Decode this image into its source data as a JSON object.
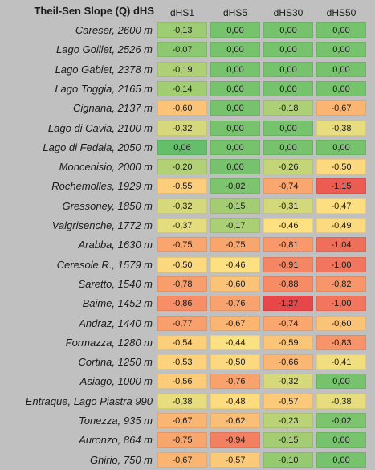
{
  "chart_data": {
    "type": "heatmap",
    "title": "Theil-Sen Slope (Q) dHS",
    "columns": [
      "dHS1",
      "dHS5",
      "dHS30",
      "dHS50"
    ],
    "rows": [
      {
        "site": "Careser, 2600 m",
        "values": [
          "-0,13",
          "0,00",
          "0,00",
          "0,00"
        ]
      },
      {
        "site": "Lago Goillet, 2526 m",
        "values": [
          "-0,07",
          "0,00",
          "0,00",
          "0,00"
        ]
      },
      {
        "site": "Lago Gabiet, 2378 m",
        "values": [
          "-0,19",
          "0,00",
          "0,00",
          "0,00"
        ]
      },
      {
        "site": "Lago Toggia, 2165 m",
        "values": [
          "-0,14",
          "0,00",
          "0,00",
          "0,00"
        ]
      },
      {
        "site": "Cignana, 2137 m",
        "values": [
          "-0,60",
          "0,00",
          "-0,18",
          "-0,67"
        ]
      },
      {
        "site": "Lago di Cavia, 2100 m",
        "values": [
          "-0,32",
          "0,00",
          "0,00",
          "-0,38"
        ]
      },
      {
        "site": "Lago di Fedaia, 2050 m",
        "values": [
          "0,06",
          "0,00",
          "0,00",
          "0,00"
        ]
      },
      {
        "site": "Moncenisio, 2000 m",
        "values": [
          "-0,20",
          "0,00",
          "-0,26",
          "-0,50"
        ]
      },
      {
        "site": "Rochemolles, 1929 m",
        "values": [
          "-0,55",
          "-0,02",
          "-0,74",
          "-1,15"
        ]
      },
      {
        "site": "Gressoney, 1850 m",
        "values": [
          "-0,32",
          "-0,15",
          "-0,31",
          "-0,47"
        ]
      },
      {
        "site": "Valgrisenche, 1772 m",
        "values": [
          "-0,37",
          "-0,17",
          "-0,46",
          "-0,49"
        ]
      },
      {
        "site": "Arabba, 1630 m",
        "values": [
          "-0,75",
          "-0,75",
          "-0,81",
          "-1,04"
        ]
      },
      {
        "site": "Ceresole R., 1579 m",
        "values": [
          "-0,50",
          "-0,46",
          "-0,91",
          "-1,00"
        ]
      },
      {
        "site": "Saretto, 1540 m",
        "values": [
          "-0,78",
          "-0,60",
          "-0,88",
          "-0,82"
        ]
      },
      {
        "site": "Baime, 1452 m",
        "values": [
          "-0,86",
          "-0,76",
          "-1,27",
          "-1,00"
        ]
      },
      {
        "site": "Andraz, 1440 m",
        "values": [
          "-0,77",
          "-0,67",
          "-0,74",
          "-0,60"
        ]
      },
      {
        "site": "Formazza, 1280 m",
        "values": [
          "-0,54",
          "-0,44",
          "-0,59",
          "-0,83"
        ]
      },
      {
        "site": "Cortina, 1250 m",
        "values": [
          "-0,53",
          "-0,50",
          "-0,66",
          "-0,41"
        ]
      },
      {
        "site": "Asiago, 1000 m",
        "values": [
          "-0,56",
          "-0,76",
          "-0,32",
          "0,00"
        ]
      },
      {
        "site": "Entraque, Lago Piastra 990",
        "values": [
          "-0,38",
          "-0,48",
          "-0,57",
          "-0,38"
        ]
      },
      {
        "site": "Tonezza, 935 m",
        "values": [
          "-0,67",
          "-0,62",
          "-0,23",
          "-0,02"
        ]
      },
      {
        "site": "Auronzo, 864 m",
        "values": [
          "-0,75",
          "-0,94",
          "-0,15",
          "0,00"
        ]
      },
      {
        "site": "Ghirio, 750 m",
        "values": [
          "-0,67",
          "-0,57",
          "-0,10",
          "0,00"
        ]
      }
    ],
    "color_scale": {
      "type": "green-yellow-red",
      "colors": [
        "#e8474a",
        "#f79068",
        "#fde281",
        "#65bf6a"
      ],
      "stops": [
        -1.27,
        -0.85,
        -0.45,
        0.06
      ]
    }
  }
}
